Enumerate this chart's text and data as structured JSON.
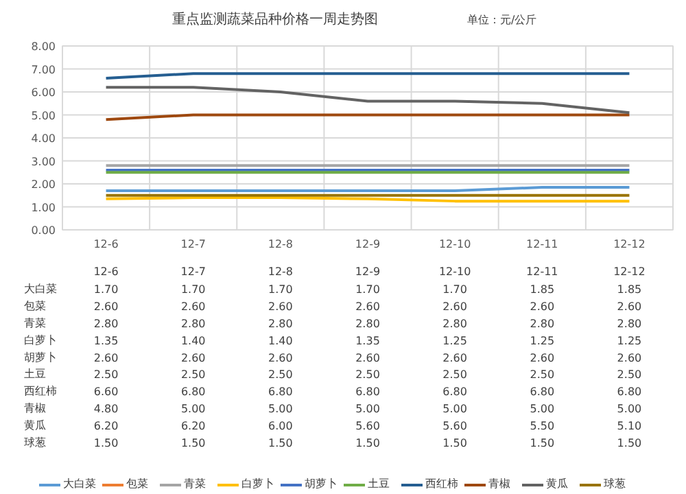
{
  "chart_data": {
    "type": "line",
    "title": "重点监测蔬菜品种价格一周走势图",
    "annotations": [
      "单位：元/公斤"
    ],
    "categories": [
      "12-6",
      "12-7",
      "12-8",
      "12-9",
      "12-10",
      "12-11",
      "12-12"
    ],
    "series": [
      {
        "name": "大白菜",
        "color": "#5b9bd5",
        "values": [
          1.7,
          1.7,
          1.7,
          1.7,
          1.7,
          1.85,
          1.85
        ],
        "value_labels": [
          "1.70",
          "1.70",
          "1.70",
          "1.70",
          "1.70",
          "1.85",
          "1.85"
        ]
      },
      {
        "name": "包菜",
        "color": "#ed7d31",
        "values": [
          null,
          null,
          null,
          null,
          null,
          null,
          null
        ],
        "value_labels": [
          "2.60",
          "2.60",
          "2.60",
          "2.60",
          "2.60",
          "2.60",
          "2.60"
        ]
      },
      {
        "name": "青菜",
        "color": "#a5a5a5",
        "values": [
          2.8,
          2.8,
          2.8,
          2.8,
          2.8,
          2.8,
          2.8
        ],
        "value_labels": [
          "2.80",
          "2.80",
          "2.80",
          "2.80",
          "2.80",
          "2.80",
          "2.80"
        ]
      },
      {
        "name": "白萝卜",
        "color": "#ffc000",
        "values": [
          1.35,
          1.4,
          1.4,
          1.35,
          1.25,
          1.25,
          1.25
        ],
        "value_labels": [
          "1.35",
          "1.40",
          "1.40",
          "1.35",
          "1.25",
          "1.25",
          "1.25"
        ]
      },
      {
        "name": "胡萝卜",
        "color": "#4472c4",
        "values": [
          2.6,
          2.6,
          2.6,
          2.6,
          2.6,
          2.6,
          2.6
        ],
        "value_labels": [
          "2.60",
          "2.60",
          "2.60",
          "2.60",
          "2.60",
          "2.60",
          "2.60"
        ]
      },
      {
        "name": "土豆",
        "color": "#70ad47",
        "values": [
          2.5,
          2.5,
          2.5,
          2.5,
          2.5,
          2.5,
          2.5
        ],
        "value_labels": [
          "2.50",
          "2.50",
          "2.50",
          "2.50",
          "2.50",
          "2.50",
          "2.50"
        ]
      },
      {
        "name": "西红柿",
        "color": "#255e91",
        "values": [
          6.6,
          6.8,
          6.8,
          6.8,
          6.8,
          6.8,
          6.8
        ],
        "value_labels": [
          "6.60",
          "6.80",
          "6.80",
          "6.80",
          "6.80",
          "6.80",
          "6.80"
        ]
      },
      {
        "name": "青椒",
        "color": "#9e480e",
        "values": [
          4.8,
          5.0,
          5.0,
          5.0,
          5.0,
          5.0,
          5.0
        ],
        "value_labels": [
          "4.80",
          "5.00",
          "5.00",
          "5.00",
          "5.00",
          "5.00",
          "5.00"
        ]
      },
      {
        "name": "黄瓜",
        "color": "#636363",
        "values": [
          6.2,
          6.2,
          6.0,
          5.6,
          5.6,
          5.5,
          5.1
        ],
        "value_labels": [
          "6.20",
          "6.20",
          "6.00",
          "5.60",
          "5.60",
          "5.50",
          "5.10"
        ]
      },
      {
        "name": "球葱",
        "color": "#997300",
        "values": [
          1.5,
          1.5,
          1.5,
          1.5,
          1.5,
          1.5,
          1.5
        ],
        "value_labels": [
          "1.50",
          "1.50",
          "1.50",
          "1.50",
          "1.50",
          "1.50",
          "1.50"
        ]
      }
    ],
    "ylim": [
      0,
      8
    ],
    "yticks": [
      {
        "value": 0,
        "label": "0.00"
      },
      {
        "value": 1,
        "label": "1.00"
      },
      {
        "value": 2,
        "label": "2.00"
      },
      {
        "value": 3,
        "label": "3.00"
      },
      {
        "value": 4,
        "label": "4.00"
      },
      {
        "value": 5,
        "label": "5.00"
      },
      {
        "value": 6,
        "label": "6.00"
      },
      {
        "value": 7,
        "label": "7.00"
      },
      {
        "value": 8,
        "label": "8.00"
      }
    ],
    "grid": true,
    "legend": "bottom",
    "marker": "none",
    "line_style": "solid"
  }
}
